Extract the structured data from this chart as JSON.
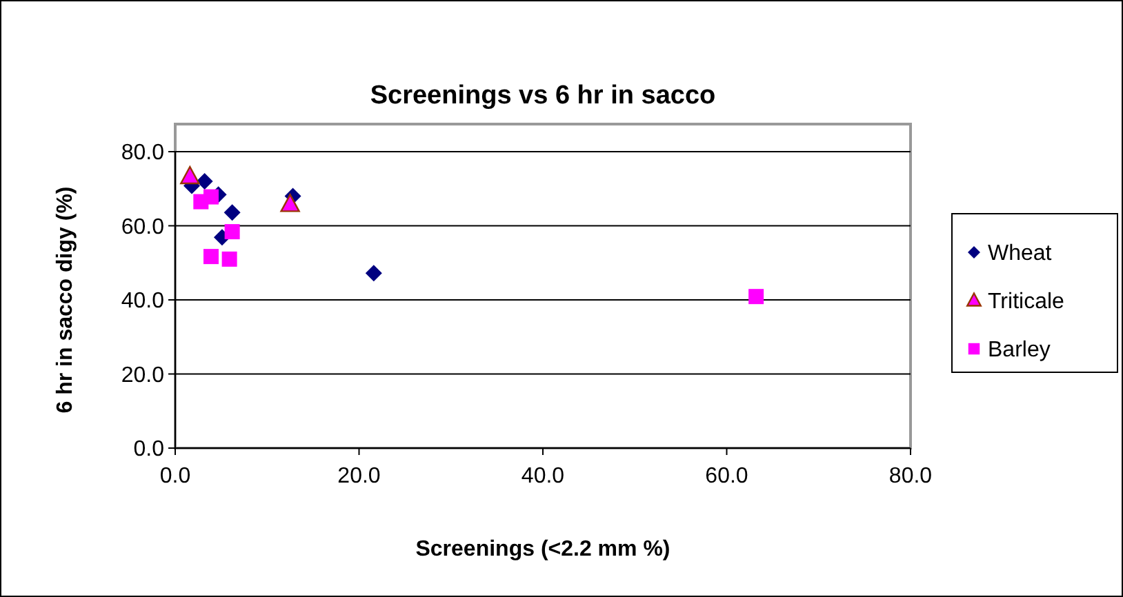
{
  "chart_data": {
    "type": "scatter",
    "title": "Screenings vs 6 hr in sacco",
    "xlabel": "Screenings (<2.2 mm %)",
    "ylabel": "6 hr in sacco digy (%)",
    "xlim": [
      0,
      80
    ],
    "xticks": [
      {
        "value": 0,
        "label": "0.0"
      },
      {
        "value": 20,
        "label": "20.0"
      },
      {
        "value": 40,
        "label": "40.0"
      },
      {
        "value": 60,
        "label": "60.0"
      },
      {
        "value": 80,
        "label": "80.0"
      }
    ],
    "ylim": [
      0,
      80
    ],
    "yticks": [
      {
        "value": 0,
        "label": "0.0"
      },
      {
        "value": 20,
        "label": "20.0"
      },
      {
        "value": 40,
        "label": "40.0"
      },
      {
        "value": 60,
        "label": "60.0"
      },
      {
        "value": 80,
        "label": "80.0"
      }
    ],
    "grid": "y",
    "legend": "right",
    "series": [
      {
        "name": "Wheat",
        "color": "#000080",
        "marker": "diamond",
        "x": [
          1.8,
          3.2,
          4.7,
          6.2,
          5.1,
          12.8,
          21.6
        ],
        "values": [
          70.8,
          72,
          68.4,
          63.6,
          56.9,
          68,
          47.2
        ]
      },
      {
        "name": "Triticale",
        "color": "#ff00ff",
        "marker": "triangle",
        "x": [
          1.6,
          12.5
        ],
        "values": [
          73.3,
          65.8
        ]
      },
      {
        "name": "Barley",
        "color": "#ff00ff",
        "marker": "square",
        "x": [
          2.8,
          3.9,
          6.2,
          3.9,
          5.9,
          63.2
        ],
        "values": [
          66.5,
          67.8,
          58.4,
          51.7,
          51,
          40.9
        ]
      }
    ]
  }
}
